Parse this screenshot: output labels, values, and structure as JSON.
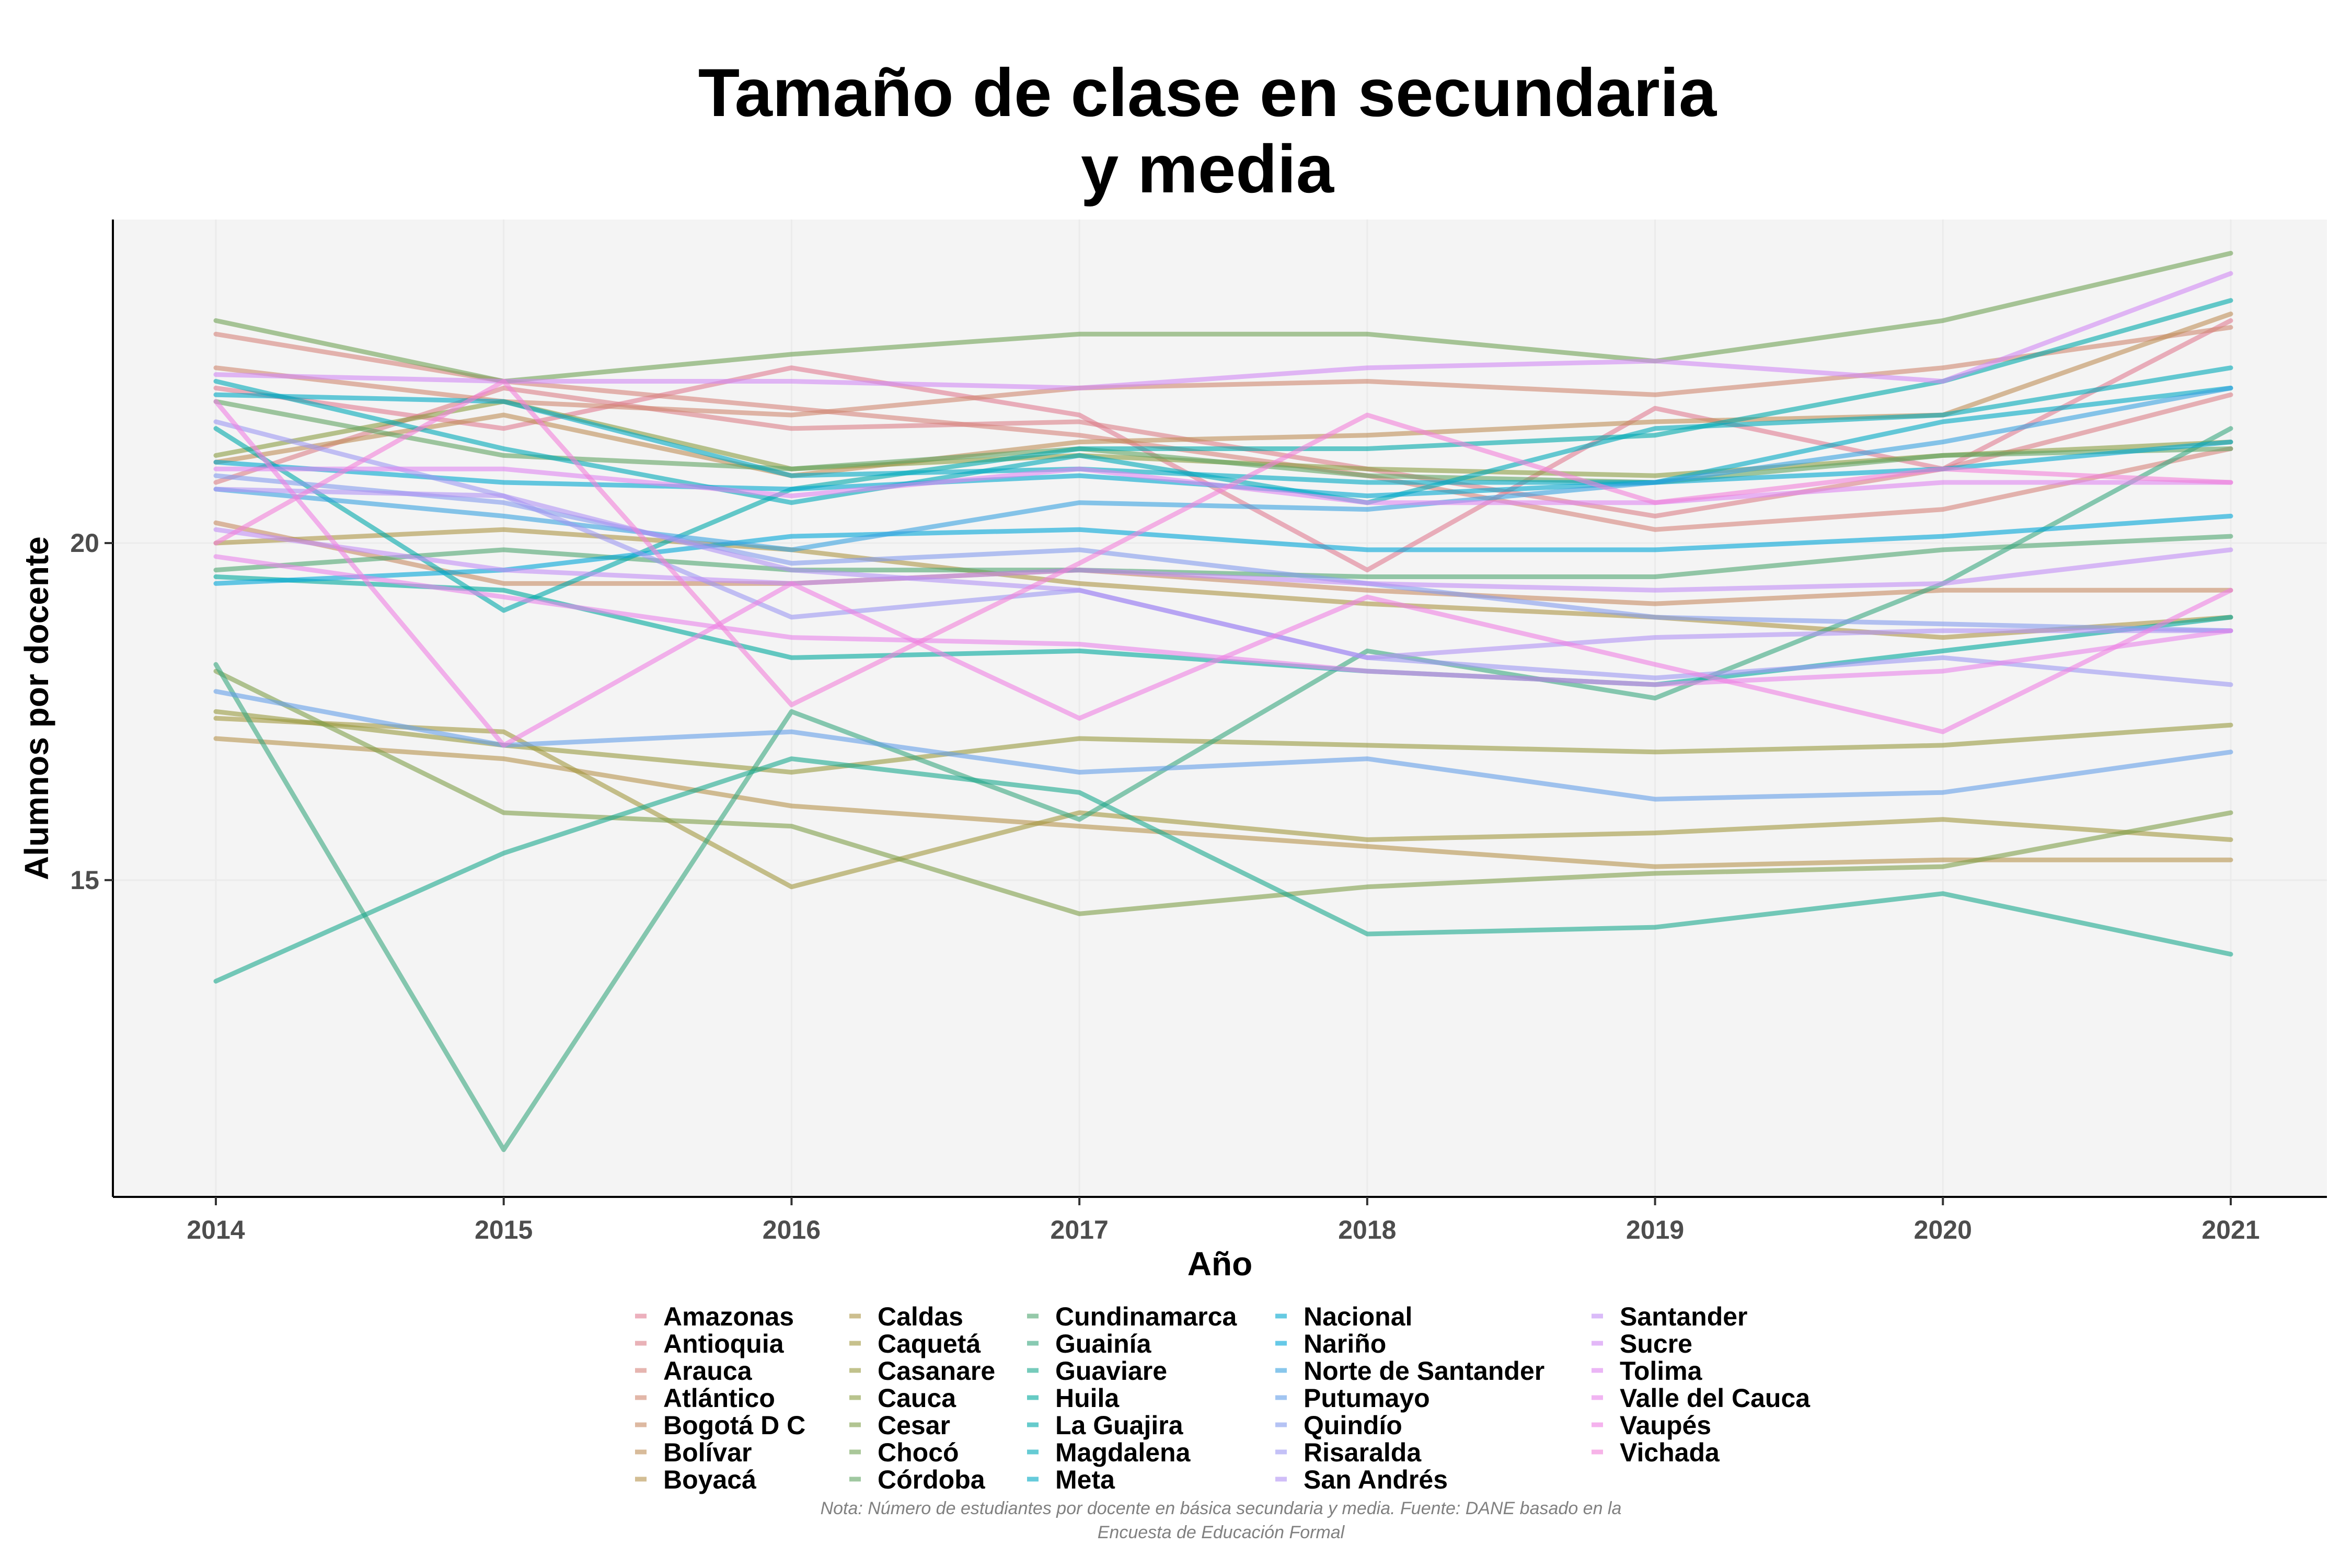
{
  "chart_data": {
    "type": "line",
    "title_lines": [
      "Tamaño de clase en secundaria",
      "y media"
    ],
    "xlabel": "Año",
    "ylabel": "Alumnos por docente",
    "x": [
      2014,
      2015,
      2016,
      2017,
      2018,
      2019,
      2020,
      2021
    ],
    "x_ticks": [
      "2014",
      "2015",
      "2016",
      "2017",
      "2018",
      "2019",
      "2020",
      "2021"
    ],
    "y_ticks": [
      15,
      20
    ],
    "ylim": [
      10.3,
      24.8
    ],
    "grid": true,
    "legend_position": "bottom",
    "note_lines": [
      "Nota: Número de estudiantes por docente en básica secundaria y media. Fuente: DANE basado en la",
      "Encuesta de Educación Formal"
    ],
    "series": [
      {
        "name": "Amazonas",
        "color": "#E07B91",
        "values": [
          22.3,
          21.7,
          22.6,
          21.9,
          19.6,
          22.0,
          21.1,
          23.3
        ]
      },
      {
        "name": "Antioquia",
        "color": "#DB7F87",
        "values": [
          20.9,
          22.3,
          21.7,
          21.8,
          21.1,
          20.4,
          21.1,
          22.2
        ]
      },
      {
        "name": "Arauca",
        "color": "#D5837C",
        "values": [
          23.1,
          22.4,
          22.0,
          21.6,
          21.0,
          20.2,
          20.5,
          21.4
        ]
      },
      {
        "name": "Atlántico",
        "color": "#CE8770",
        "values": [
          22.6,
          22.1,
          21.9,
          22.3,
          22.4,
          22.2,
          22.6,
          23.2
        ]
      },
      {
        "name": "Bogotá D C",
        "color": "#C68B63",
        "values": [
          20.3,
          19.4,
          19.4,
          19.6,
          19.3,
          19.1,
          19.3,
          19.3
        ]
      },
      {
        "name": "Bolívar",
        "color": "#BE8E57",
        "values": [
          21.2,
          21.9,
          21.0,
          21.5,
          21.6,
          21.8,
          21.9,
          23.4
        ]
      },
      {
        "name": "Boyacá",
        "color": "#B5924D",
        "values": [
          17.1,
          16.8,
          16.1,
          15.8,
          15.5,
          15.2,
          15.3,
          15.3
        ]
      },
      {
        "name": "Caldas",
        "color": "#AC9545",
        "values": [
          20.0,
          20.2,
          19.9,
          19.4,
          19.1,
          18.9,
          18.6,
          18.9
        ]
      },
      {
        "name": "Caquetá",
        "color": "#A29840",
        "values": [
          17.4,
          17.2,
          14.9,
          16.0,
          15.6,
          15.7,
          15.9,
          15.6
        ]
      },
      {
        "name": "Casanare",
        "color": "#979A3F",
        "values": [
          17.5,
          17.0,
          16.6,
          17.1,
          17.0,
          16.9,
          17.0,
          17.3
        ]
      },
      {
        "name": "Cauca",
        "color": "#8B9D43",
        "values": [
          21.3,
          22.1,
          21.1,
          21.3,
          21.1,
          21.0,
          21.3,
          21.5
        ]
      },
      {
        "name": "Cesar",
        "color": "#7E9F4A",
        "values": [
          18.1,
          16.0,
          15.8,
          14.5,
          14.9,
          15.1,
          15.2,
          16.0
        ]
      },
      {
        "name": "Chocó",
        "color": "#70A255",
        "values": [
          23.3,
          22.4,
          22.8,
          23.1,
          23.1,
          22.7,
          23.3,
          24.3
        ]
      },
      {
        "name": "Córdoba",
        "color": "#60A462",
        "values": [
          22.1,
          21.3,
          21.1,
          21.4,
          21.0,
          20.9,
          21.3,
          21.4
        ]
      },
      {
        "name": "Cundinamarca",
        "color": "#4EA570",
        "values": [
          19.6,
          19.9,
          19.6,
          19.6,
          19.5,
          19.5,
          19.9,
          20.1
        ]
      },
      {
        "name": "Guainía",
        "color": "#38A77F",
        "values": [
          18.2,
          11.0,
          17.5,
          15.9,
          18.4,
          17.7,
          19.4,
          21.7
        ]
      },
      {
        "name": "Guaviare",
        "color": "#1AA88E",
        "values": [
          13.5,
          15.4,
          16.8,
          16.3,
          14.2,
          14.3,
          14.8,
          13.9
        ]
      },
      {
        "name": "Huila",
        "color": "#00A99C",
        "values": [
          19.5,
          19.3,
          18.3,
          18.4,
          18.1,
          17.9,
          18.4,
          18.9
        ]
      },
      {
        "name": "La Guajira",
        "color": "#00A9AA",
        "values": [
          21.7,
          19.0,
          20.8,
          21.4,
          21.4,
          21.6,
          22.4,
          23.6
        ]
      },
      {
        "name": "Magdalena",
        "color": "#00A9B7",
        "values": [
          22.4,
          21.4,
          20.6,
          21.3,
          20.6,
          21.7,
          21.9,
          22.6
        ]
      },
      {
        "name": "Meta",
        "color": "#00A8C3",
        "values": [
          22.2,
          22.1,
          21.0,
          21.1,
          20.9,
          20.9,
          21.8,
          22.3
        ]
      },
      {
        "name": "Nacional",
        "color": "#00A7CE",
        "values": [
          21.2,
          20.9,
          20.8,
          21.0,
          20.7,
          20.9,
          21.1,
          21.5
        ]
      },
      {
        "name": "Nariño",
        "color": "#00A5D7",
        "values": [
          19.4,
          19.6,
          20.1,
          20.2,
          19.9,
          19.9,
          20.1,
          20.4
        ]
      },
      {
        "name": "Norte de Santander",
        "color": "#38A2E0",
        "values": [
          20.8,
          20.4,
          19.9,
          20.6,
          20.5,
          20.9,
          21.5,
          22.3
        ]
      },
      {
        "name": "Putumayo",
        "color": "#649FE7",
        "values": [
          17.8,
          17.0,
          17.2,
          16.6,
          16.8,
          16.2,
          16.3,
          16.9
        ]
      },
      {
        "name": "Quindío",
        "color": "#839BED",
        "values": [
          21.0,
          20.6,
          19.7,
          19.9,
          19.4,
          18.9,
          18.8,
          18.7
        ]
      },
      {
        "name": "Risaralda",
        "color": "#9C97F1",
        "values": [
          21.8,
          20.7,
          18.9,
          19.3,
          18.3,
          18.0,
          18.3,
          17.9
        ]
      },
      {
        "name": "San Andrés",
        "color": "#B092F4",
        "values": [
          20.8,
          20.7,
          19.6,
          19.3,
          18.3,
          18.6,
          18.7,
          18.7
        ]
      },
      {
        "name": "Santander",
        "color": "#C28EF5",
        "values": [
          20.2,
          19.6,
          19.4,
          19.6,
          19.4,
          19.3,
          19.4,
          19.9
        ]
      },
      {
        "name": "Sucre",
        "color": "#D189F4",
        "values": [
          22.5,
          22.4,
          22.4,
          22.3,
          22.6,
          22.7,
          22.4,
          24.0
        ]
      },
      {
        "name": "Tolima",
        "color": "#DE86F0",
        "values": [
          21.1,
          21.1,
          20.7,
          21.1,
          20.6,
          20.6,
          20.9,
          20.9
        ]
      },
      {
        "name": "Valle del Cauca",
        "color": "#E783EA",
        "values": [
          19.8,
          19.2,
          18.6,
          18.5,
          18.1,
          17.9,
          18.1,
          18.7
        ]
      },
      {
        "name": "Vaupés",
        "color": "#EE81E2",
        "values": [
          22.1,
          17.0,
          19.4,
          17.4,
          19.2,
          18.2,
          17.2,
          19.3
        ]
      },
      {
        "name": "Vichada",
        "color": "#F280D9",
        "values": [
          20.0,
          22.4,
          17.6,
          19.7,
          21.9,
          20.6,
          21.1,
          20.9
        ]
      }
    ]
  }
}
